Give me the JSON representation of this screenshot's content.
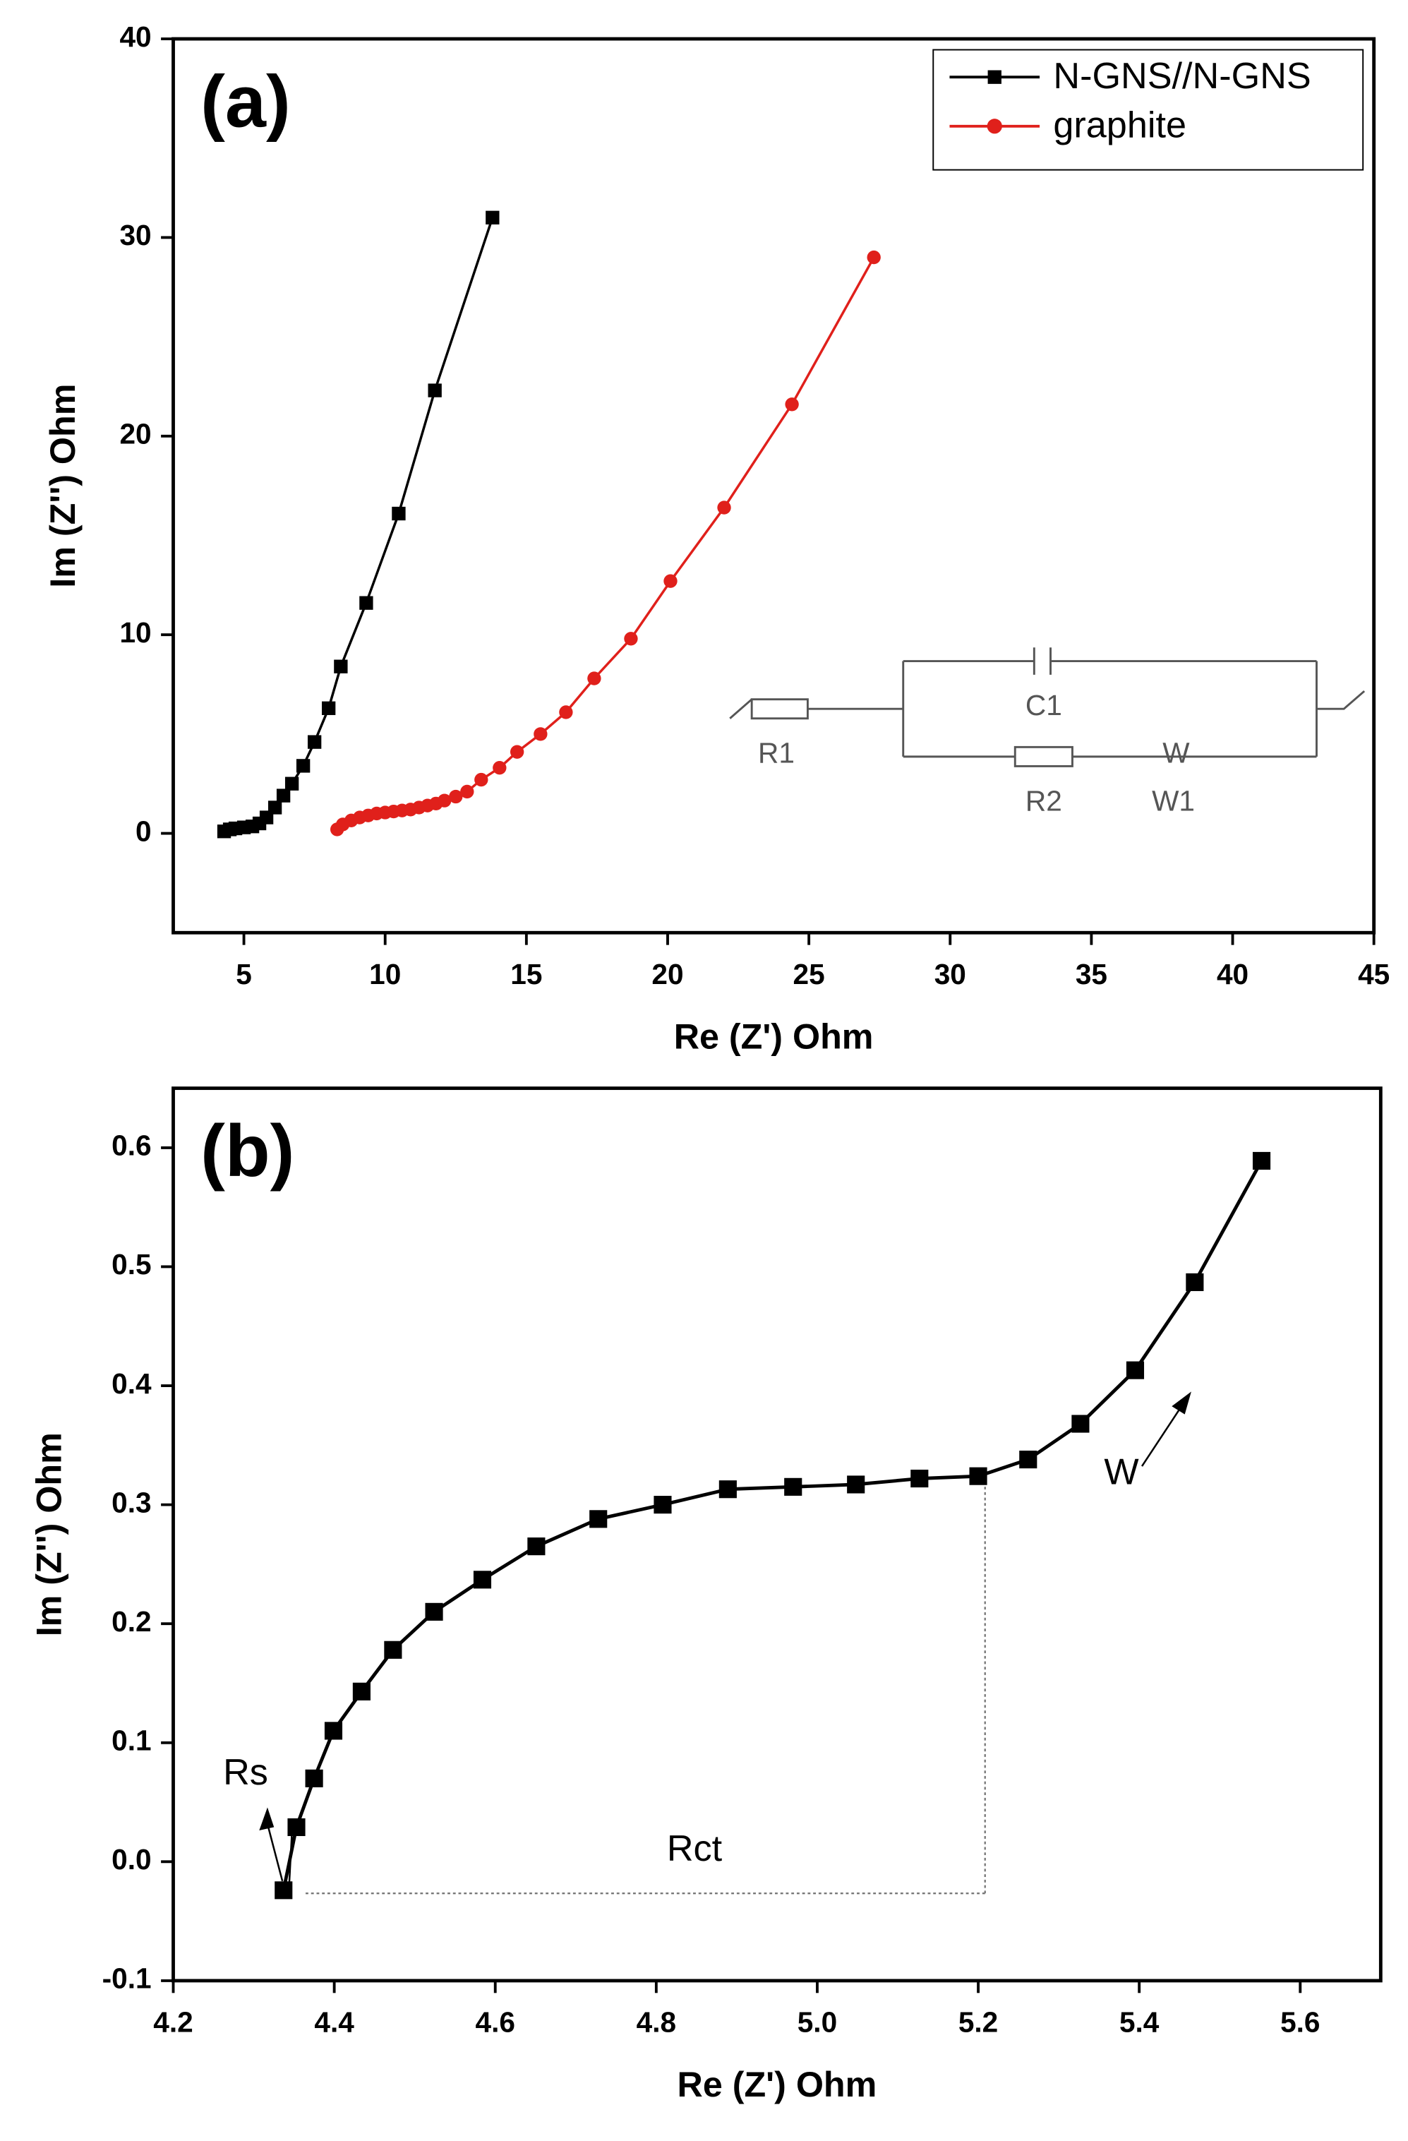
{
  "chart_data": [
    {
      "type": "line",
      "title": "(a)",
      "xlabel": "Re (Z') Ohm",
      "ylabel": "Im (Z'') Ohm",
      "xlim": [
        2.5,
        45
      ],
      "ylim": [
        -5,
        40
      ],
      "xticks": [
        5,
        10,
        15,
        20,
        25,
        30,
        35,
        40,
        45
      ],
      "yticks": [
        0,
        10,
        20,
        30,
        40
      ],
      "legend": "upper right",
      "annotations": [
        "R1",
        "C1",
        "R2",
        "W",
        "W1"
      ],
      "series": [
        {
          "name": "N-GNS//N-GNS",
          "color": "#000000",
          "marker": "square",
          "x": [
            4.3,
            4.5,
            4.7,
            5.0,
            5.3,
            5.55,
            5.8,
            6.1,
            6.4,
            6.7,
            7.1,
            7.5,
            8.0,
            8.43,
            9.33,
            10.48,
            11.76,
            13.8
          ],
          "values": [
            0.1,
            0.2,
            0.25,
            0.3,
            0.35,
            0.5,
            0.8,
            1.3,
            1.9,
            2.5,
            3.4,
            4.6,
            6.3,
            8.4,
            11.6,
            16.1,
            22.3,
            31.0
          ]
        },
        {
          "name": "graphite",
          "color": "#e0201b",
          "marker": "circle",
          "x": [
            8.3,
            8.5,
            8.8,
            9.1,
            9.4,
            9.7,
            10.0,
            10.3,
            10.6,
            10.9,
            11.2,
            11.5,
            11.8,
            12.1,
            12.5,
            12.9,
            13.4,
            14.05,
            14.67,
            15.5,
            16.4,
            17.4,
            18.7,
            20.1,
            22.0,
            24.4,
            27.3
          ],
          "values": [
            0.2,
            0.45,
            0.65,
            0.8,
            0.9,
            1.0,
            1.05,
            1.1,
            1.15,
            1.2,
            1.3,
            1.4,
            1.5,
            1.65,
            1.85,
            2.1,
            2.7,
            3.3,
            4.1,
            5.0,
            6.1,
            7.8,
            9.8,
            12.7,
            16.4,
            21.6,
            29.0
          ]
        }
      ]
    },
    {
      "type": "line",
      "title": "(b)",
      "xlabel": "Re (Z') Ohm",
      "ylabel": "Im (Z'') Ohm",
      "xlim": [
        4.2,
        5.7
      ],
      "ylim": [
        -0.1,
        0.65
      ],
      "xticks": [
        4.2,
        4.4,
        4.6,
        4.8,
        {
          "value": 5,
          "label": "5.0"
        },
        5.2,
        5.4,
        5.6
      ],
      "yticks": [
        -0.1,
        {
          "value": 0,
          "label": "0.0"
        },
        0.1,
        0.2,
        0.3,
        0.4,
        0.5,
        0.6
      ],
      "annotations": [
        "Rs",
        "Rct",
        "W"
      ],
      "series": [
        {
          "color": "#000000",
          "marker": "square",
          "x": [
            4.337,
            4.353,
            4.375,
            4.399,
            4.434,
            4.473,
            4.524,
            4.584,
            4.651,
            4.728,
            4.808,
            4.889,
            4.97,
            5.048,
            5.127,
            5.2,
            5.262,
            5.327,
            5.395,
            5.469,
            5.552
          ],
          "values": [
            -0.024,
            0.029,
            0.07,
            0.11,
            0.143,
            0.178,
            0.21,
            0.237,
            0.265,
            0.288,
            0.3,
            0.313,
            0.315,
            0.317,
            0.322,
            0.324,
            0.338,
            0.368,
            0.413,
            0.487,
            0.589
          ]
        }
      ]
    }
  ]
}
